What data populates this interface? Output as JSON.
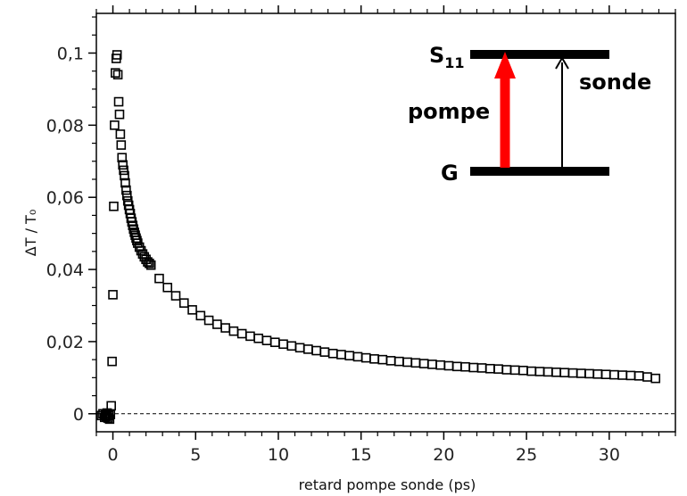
{
  "chart_data": {
    "type": "scatter",
    "title": "",
    "xlabel": "retard pompe sonde (ps)",
    "ylabel": "ΔT / T₀",
    "xlim": [
      -1,
      34
    ],
    "ylim": [
      -0.005,
      0.111
    ],
    "x_ticks": [
      0,
      5,
      10,
      15,
      20,
      25,
      30
    ],
    "x_tick_labels": [
      "0",
      "5",
      "10",
      "15",
      "20",
      "25",
      "30"
    ],
    "y_ticks": [
      0,
      0.02,
      0.04,
      0.06,
      0.08,
      0.1
    ],
    "y_tick_labels": [
      "0",
      "0,02",
      "0,04",
      "0,06",
      "0,08",
      "0,1"
    ],
    "zero_line": true,
    "marker": "open-square",
    "series": [
      {
        "x": [
          -0.7,
          -0.6,
          -0.5,
          -0.45,
          -0.4,
          -0.35,
          -0.3,
          -0.25,
          -0.2,
          -0.15,
          -0.1,
          -0.05,
          0.0,
          0.05,
          0.1,
          0.15,
          0.2,
          0.25,
          0.3,
          0.35,
          0.4,
          0.45,
          0.5,
          0.55,
          0.6,
          0.65,
          0.7,
          0.75,
          0.8,
          0.85,
          0.9,
          0.95,
          1.0,
          1.05,
          1.1,
          1.15,
          1.2,
          1.25,
          1.3,
          1.35,
          1.4,
          1.45,
          1.5,
          1.6,
          1.7,
          1.8,
          1.9,
          2.0,
          2.1,
          2.2,
          2.3,
          2.8,
          3.3,
          3.8,
          4.3,
          4.8,
          5.3,
          5.8,
          6.3,
          6.8,
          7.3,
          7.8,
          8.3,
          8.8,
          9.3,
          9.8,
          10.3,
          10.8,
          11.3,
          11.8,
          12.3,
          12.8,
          13.3,
          13.8,
          14.3,
          14.8,
          15.3,
          15.8,
          16.3,
          16.8,
          17.3,
          17.8,
          18.3,
          18.8,
          19.3,
          19.8,
          20.3,
          20.8,
          21.3,
          21.8,
          22.3,
          22.8,
          23.3,
          23.8,
          24.3,
          24.8,
          25.3,
          25.8,
          26.3,
          26.8,
          27.3,
          27.8,
          28.3,
          28.8,
          29.3,
          29.8,
          30.3,
          30.8,
          31.3,
          31.8,
          32.3,
          32.8
        ],
        "y": [
          -0.0005,
          0.0,
          -0.001,
          -0.0003,
          -0.0008,
          0.0002,
          -0.0012,
          -0.0005,
          -0.0015,
          -0.0002,
          0.0022,
          0.0145,
          0.033,
          0.0575,
          0.08,
          0.0945,
          0.0985,
          0.0995,
          0.094,
          0.0865,
          0.083,
          0.0775,
          0.0745,
          0.071,
          0.069,
          0.0675,
          0.066,
          0.064,
          0.062,
          0.0605,
          0.059,
          0.0578,
          0.0566,
          0.0555,
          0.0542,
          0.0532,
          0.0522,
          0.0512,
          0.0503,
          0.0495,
          0.0487,
          0.048,
          0.0473,
          0.0462,
          0.0452,
          0.0443,
          0.0435,
          0.0428,
          0.0421,
          0.0417,
          0.0412,
          0.0375,
          0.035,
          0.0327,
          0.0307,
          0.0288,
          0.0272,
          0.0259,
          0.0248,
          0.0238,
          0.0229,
          0.0222,
          0.0215,
          0.0209,
          0.0203,
          0.0198,
          0.0193,
          0.0188,
          0.0183,
          0.0179,
          0.0175,
          0.0171,
          0.0167,
          0.0164,
          0.0161,
          0.0158,
          0.0155,
          0.0152,
          0.015,
          0.0147,
          0.0145,
          0.0143,
          0.0141,
          0.0139,
          0.0137,
          0.0135,
          0.0133,
          0.0131,
          0.013,
          0.0128,
          0.0127,
          0.0125,
          0.0124,
          0.0122,
          0.0121,
          0.012,
          0.0118,
          0.0117,
          0.0116,
          0.0115,
          0.0114,
          0.0113,
          0.0112,
          0.0111,
          0.011,
          0.0109,
          0.0108,
          0.0107,
          0.0106,
          0.0105,
          0.0102,
          0.0098
        ]
      }
    ],
    "inset": {
      "upper_level": "S",
      "upper_level_sub": "11",
      "lower_level": "G",
      "pump_label": "pompe",
      "probe_label": "sonde",
      "pump_color": "#ff0000",
      "probe_color": "#000000"
    }
  }
}
